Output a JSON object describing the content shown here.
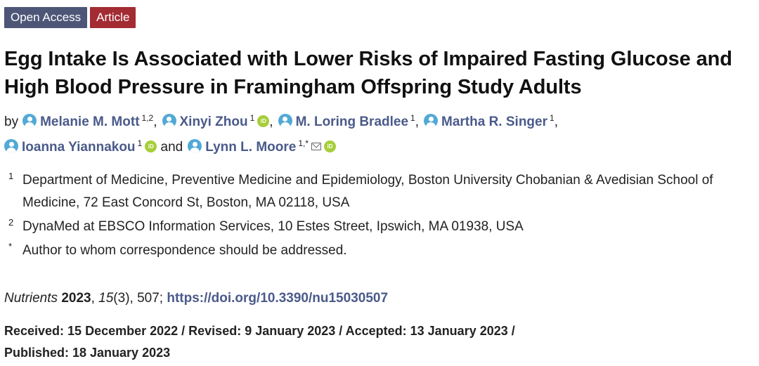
{
  "badges": {
    "open_access": "Open Access",
    "article": "Article"
  },
  "title": "Egg Intake Is Associated with Lower Risks of Impaired Fasting Glucose and High Blood Pressure in Framingham Offspring Study Adults",
  "byline": {
    "by": "by",
    "authors": [
      {
        "name": "Melanie M. Mott",
        "sup": "1,2",
        "orcid": false,
        "sep": ","
      },
      {
        "name": "Xinyi Zhou",
        "sup": "1",
        "orcid": true,
        "sep": ","
      },
      {
        "name": "M. Loring Bradlee",
        "sup": "1",
        "orcid": false,
        "sep": ","
      },
      {
        "name": "Martha R. Singer",
        "sup": "1",
        "orcid": false,
        "sep": ","
      },
      {
        "name": "Ioanna Yiannakou",
        "sup": "1",
        "orcid": true,
        "sep": ""
      },
      {
        "name": "Lynn L. Moore",
        "sup": "1,*",
        "orcid": true,
        "email": true,
        "sep": ""
      }
    ],
    "and": "and",
    "orcid_label": "iD"
  },
  "affiliations": [
    {
      "num": "1",
      "text": "Department of Medicine, Preventive Medicine and Epidemiology, Boston University Chobanian & Avedisian School of Medicine, 72 East Concord St, Boston, MA 02118, USA"
    },
    {
      "num": "2",
      "text": "DynaMed at EBSCO Information Services, 10 Estes Street, Ipswich, MA 01938, USA"
    },
    {
      "num": "*",
      "text": "Author to whom correspondence should be addressed."
    }
  ],
  "citation": {
    "journal": "Nutrients",
    "year": "2023",
    "volume": "15",
    "issue_pages": "(3), 507;",
    "doi": "https://doi.org/10.3390/nu15030507"
  },
  "dates": {
    "line1": "Received: 15 December 2022 / Revised: 9 January 2023 / Accepted: 13 January 2023 /",
    "line2": "Published: 18 January 2023"
  },
  "colors": {
    "open_access_badge": "#4d5677",
    "article_badge": "#a32b32",
    "link": "#4a5a8a",
    "avatar": "#52a9d6",
    "orcid": "#a6ce39"
  },
  "icons": [
    "user-avatar-icon",
    "orcid-icon",
    "email-icon"
  ]
}
